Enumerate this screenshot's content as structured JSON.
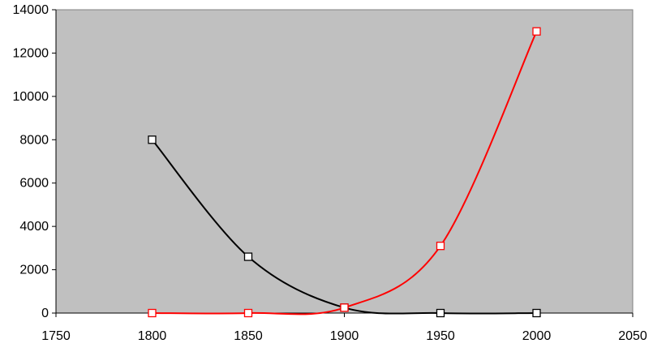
{
  "chart_data": {
    "type": "scatter",
    "title": "",
    "xlabel": "",
    "ylabel": "",
    "xlim": [
      1750,
      2050
    ],
    "ylim": [
      0,
      14000
    ],
    "x_ticks": [
      "1750",
      "1800",
      "1850",
      "1900",
      "1950",
      "2000",
      "2050"
    ],
    "y_ticks": [
      "0",
      "2000",
      "4000",
      "6000",
      "8000",
      "10000",
      "12000",
      "14000"
    ],
    "grid": false,
    "legend": "none",
    "plot_background": "#c0c0c0",
    "smooth_lines": true,
    "series": [
      {
        "color": "#000000",
        "points": [
          {
            "x": 1800,
            "y": 8000
          },
          {
            "x": 1850,
            "y": 2600
          },
          {
            "x": 1900,
            "y": 250
          },
          {
            "x": 1950,
            "y": 0
          },
          {
            "x": 2000,
            "y": 0
          }
        ]
      },
      {
        "color": "#ff0000",
        "points": [
          {
            "x": 1800,
            "y": 0
          },
          {
            "x": 1850,
            "y": 0
          },
          {
            "x": 1900,
            "y": 250
          },
          {
            "x": 1950,
            "y": 3100
          },
          {
            "x": 2000,
            "y": 13000
          }
        ]
      }
    ]
  }
}
